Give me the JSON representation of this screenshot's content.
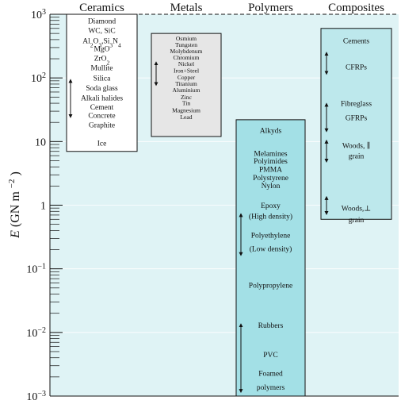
{
  "chart_data": {
    "type": "range",
    "ylabel_main": "E",
    "ylabel_unit": "(GN  m",
    "ylabel_unit_exp": "−2",
    "ylabel_unit_close": ")",
    "yscale": "log",
    "ylim": [
      0.001,
      1000
    ],
    "y_ticks": [
      {
        "value": 1000,
        "base": "10",
        "exp": "3"
      },
      {
        "value": 100,
        "base": "10",
        "exp": "2"
      },
      {
        "value": 10,
        "base": "10",
        "exp": ""
      },
      {
        "value": 1,
        "base": "1",
        "exp": ""
      },
      {
        "value": 0.1,
        "base": "10",
        "exp": "−1"
      },
      {
        "value": 0.01,
        "base": "10",
        "exp": "−2"
      },
      {
        "value": 0.001,
        "base": "10",
        "exp": "−3"
      }
    ],
    "categories": [
      "Ceramics",
      "Metals",
      "Polymers",
      "Composites"
    ],
    "columns": [
      {
        "name": "Ceramics",
        "range": [
          7,
          1000
        ],
        "fill": "#ffffff",
        "labels": [
          {
            "text": "Diamond",
            "y": 800
          },
          {
            "text": "WC, SiC",
            "y": 560
          },
          {
            "text": "Al2O3,Si3N4",
            "y": 390,
            "formula": [
              [
                "Al",
                ""
              ],
              [
                "2",
                "sub"
              ],
              [
                "O",
                ""
              ],
              [
                "3",
                "sub"
              ],
              [
                ",Si",
                ""
              ],
              [
                "3",
                "sub"
              ],
              [
                "N",
                ""
              ],
              [
                "4",
                "sub"
              ]
            ]
          },
          {
            "text": "MgO",
            "y": 290
          },
          {
            "text": "ZrO2",
            "y": 205,
            "formula": [
              [
                "ZrO",
                ""
              ],
              [
                "2",
                "sub"
              ]
            ]
          },
          {
            "text": "Mullite",
            "y": 145
          },
          {
            "text": "Silica",
            "y": 100
          },
          {
            "text": "Soda glass",
            "y": 70
          },
          {
            "text": "Alkali halides",
            "y": 49
          },
          {
            "text": "Cement",
            "y": 35
          },
          {
            "text": "Concrete",
            "y": 26
          },
          {
            "text": "Graphite",
            "y": 18.5
          },
          {
            "text": "Ice",
            "y": 9.5
          }
        ],
        "arrows": [
          {
            "from": 25,
            "to": 90
          }
        ]
      },
      {
        "name": "Metals",
        "range": [
          12,
          500
        ],
        "fill": "#e6e6e6",
        "labels": [
          {
            "text": "Osmium",
            "y": 430
          },
          {
            "text": "Tungsten",
            "y": 340
          },
          {
            "text": "Molybdenum",
            "y": 270
          },
          {
            "text": "Chromium",
            "y": 215
          },
          {
            "text": "Nickel",
            "y": 170
          },
          {
            "text": "Iron+Steel",
            "y": 133
          },
          {
            "text": "Copper",
            "y": 105
          },
          {
            "text": "Titanium",
            "y": 83
          },
          {
            "text": "Aluminium",
            "y": 66
          },
          {
            "text": "Zinc",
            "y": 51
          },
          {
            "text": "Tin",
            "y": 41
          },
          {
            "text": "Magnesium",
            "y": 32
          },
          {
            "text": "Lead",
            "y": 25
          }
        ],
        "arrows": [
          {
            "from": 80,
            "to": 170
          }
        ]
      },
      {
        "name": "Polymers",
        "range": [
          0.001,
          22
        ],
        "fill": "#a3e0e6",
        "labels": [
          {
            "text": "Alkyds",
            "y": 15
          },
          {
            "text": "Melamines",
            "y": 6.6
          },
          {
            "text": "Polyimides",
            "y": 5.0
          },
          {
            "text": "PMMA",
            "y": 3.7
          },
          {
            "text": "Polystyrene",
            "y": 2.75
          },
          {
            "text": "Nylon",
            "y": 2.05
          },
          {
            "text": "Epoxy",
            "y": 1.0
          },
          {
            "text": "(High density)",
            "y": 0.68
          },
          {
            "text": "Polyethylene",
            "y": 0.34
          },
          {
            "text": "(Low density)",
            "y": 0.21
          },
          {
            "text": "Polypropylene",
            "y": 0.056
          },
          {
            "text": "Rubbers",
            "y": 0.013
          },
          {
            "text": "PVC",
            "y": 0.0045
          },
          {
            "text": "Foamed",
            "y": 0.0023
          },
          {
            "text": "polymers",
            "y": 0.0014
          }
        ],
        "arrows": [
          {
            "from": 0.17,
            "to": 0.7
          },
          {
            "from": 0.0012,
            "to": 0.013
          }
        ]
      },
      {
        "name": "Composites",
        "range": [
          0.6,
          600
        ],
        "fill": "#bde8ec",
        "labels": [
          {
            "text": "Cements",
            "y": 390
          },
          {
            "text": "CFRPs",
            "y": 150
          },
          {
            "text": "Fibreglass",
            "y": 40
          },
          {
            "text": "GFRPs",
            "y": 24
          },
          {
            "text": "Woods, ∥",
            "y": 8.8
          },
          {
            "text": "grain",
            "y": 6.0
          },
          {
            "text": "Woods,⊥",
            "y": 0.9
          },
          {
            "text": "grain",
            "y": 0.6
          }
        ],
        "arrows": [
          {
            "from": 120,
            "to": 240
          },
          {
            "from": 15,
            "to": 38
          },
          {
            "from": 5,
            "to": 10
          },
          {
            "from": 0.75,
            "to": 1.3
          }
        ]
      }
    ],
    "reference_line": {
      "value": 1000,
      "style": "dashed"
    },
    "grid": true,
    "background": "#dff3f5"
  }
}
